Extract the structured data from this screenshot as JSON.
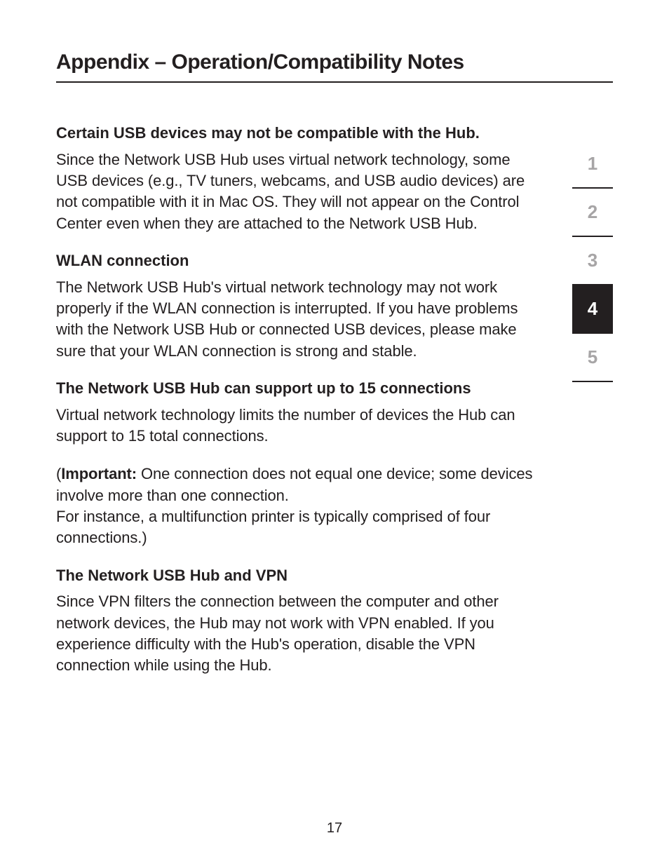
{
  "heading": "Appendix – Operation/Compatibility Notes",
  "sections": [
    {
      "title": "Certain USB devices may not be compatible with the Hub.",
      "body": "Since the Network USB Hub uses virtual network technology, some USB devices (e.g., TV tuners, webcams, and USB audio devices) are not compatible with it in Mac OS. They will not appear on the Control Center even when they are attached to the Network USB Hub."
    },
    {
      "title": "WLAN connection",
      "body": "The Network USB Hub's virtual network technology may not work properly if the WLAN connection is interrupted. If you have problems with the Network USB Hub or connected USB devices, please make sure that your WLAN connection is strong and stable."
    },
    {
      "title": "The Network USB Hub can support up to 15 connections",
      "body": "Virtual network technology limits the number of devices the Hub can support to 15 total connections."
    }
  ],
  "important": {
    "label": "Important:",
    "prefix": "(",
    "text": " One connection does not equal one device; some devices involve more than one connection.",
    "continuation": "For instance, a multifunction printer is typically comprised of four connections.)"
  },
  "vpn": {
    "title": "The Network USB Hub and VPN",
    "body": "Since VPN filters the connection between the computer and other network devices, the Hub may not work with VPN enabled. If you experience difficulty with the Hub's operation, disable the VPN connection while using the Hub."
  },
  "nav": {
    "items": [
      "1",
      "2",
      "3",
      "4",
      "5"
    ],
    "activeIndex": 3
  },
  "pageNumber": "17",
  "colors": {
    "text": "#231f20",
    "navInactive": "#a7a5a6",
    "navActiveBg": "#231f20",
    "navActiveText": "#ffffff",
    "background": "#ffffff"
  },
  "typography": {
    "headingSize": 30,
    "sectionTitleSize": 22,
    "bodySize": 22,
    "navSize": 26,
    "pageNumSize": 20
  }
}
